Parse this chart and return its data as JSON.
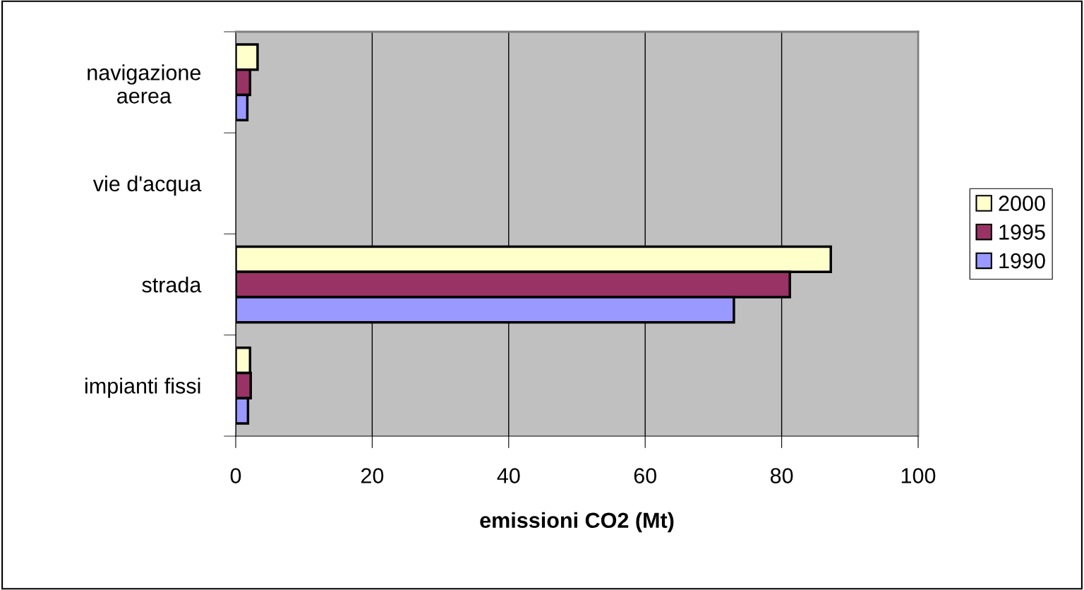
{
  "chart_data": {
    "type": "bar",
    "orientation": "horizontal",
    "xlabel": "emissioni CO2 (Mt)",
    "categories": [
      "navigazione\naerea",
      "vie d'acqua",
      "strada",
      "impianti fissi"
    ],
    "series": [
      {
        "name": "2000",
        "color": "#ffffcc",
        "values": [
          3.2,
          null,
          87.2,
          2.1
        ]
      },
      {
        "name": "1995",
        "color": "#993366",
        "values": [
          2.1,
          null,
          81.2,
          2.2
        ]
      },
      {
        "name": "1990",
        "color": "#9999ff",
        "values": [
          1.7,
          null,
          73.0,
          1.8
        ]
      }
    ],
    "xlim": [
      0,
      100
    ],
    "xticks": [
      0,
      20,
      40,
      60,
      80,
      100
    ],
    "grid": "x",
    "legend": "right"
  }
}
